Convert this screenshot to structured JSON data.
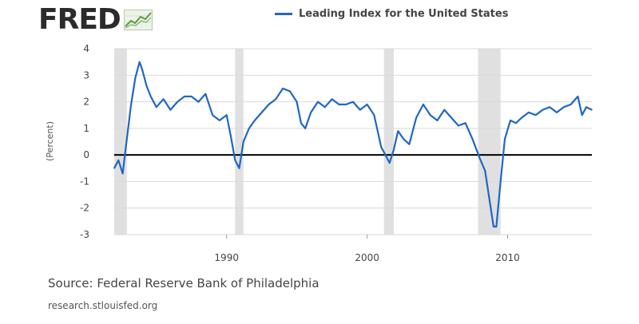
{
  "brand": {
    "name": "FRED",
    "logo_icon": "trend-chart-icon"
  },
  "legend": {
    "label": "Leading Index for the United States",
    "color": "#1f67c4"
  },
  "footer": {
    "source": "Source: Federal Reserve Bank of Philadelphia",
    "url": "research.stlouisfed.org"
  },
  "colors": {
    "series": "#1f67c4",
    "recession": "#e0e0e0",
    "zero_line": "#000000",
    "grid": "#d9d9d9"
  },
  "chart_data": {
    "type": "line",
    "title": "",
    "xlabel": "",
    "ylabel": "(Percent)",
    "xlim": [
      1982,
      2016
    ],
    "ylim": [
      -3,
      4
    ],
    "x_ticks": [
      1990,
      2000,
      2010
    ],
    "y_ticks": [
      4,
      3,
      2,
      1,
      0,
      -1,
      -2,
      -3
    ],
    "grid": true,
    "zero_line": true,
    "legend_position": "top-right",
    "recessions": [
      [
        1982.0,
        1982.9
      ],
      [
        1990.6,
        1991.2
      ],
      [
        2001.2,
        2001.9
      ],
      [
        2007.9,
        2009.5
      ]
    ],
    "series": [
      {
        "name": "Leading Index for the United States",
        "x": [
          1982.0,
          1982.3,
          1982.6,
          1982.9,
          1983.2,
          1983.5,
          1983.8,
          1984.0,
          1984.3,
          1984.6,
          1985.0,
          1985.5,
          1986.0,
          1986.5,
          1987.0,
          1987.5,
          1988.0,
          1988.5,
          1989.0,
          1989.5,
          1990.0,
          1990.3,
          1990.6,
          1990.9,
          1991.2,
          1991.6,
          1992.0,
          1992.5,
          1993.0,
          1993.5,
          1994.0,
          1994.5,
          1995.0,
          1995.3,
          1995.6,
          1996.0,
          1996.5,
          1997.0,
          1997.5,
          1998.0,
          1998.5,
          1999.0,
          1999.5,
          2000.0,
          2000.5,
          2001.0,
          2001.3,
          2001.6,
          2001.9,
          2002.2,
          2002.6,
          2003.0,
          2003.5,
          2004.0,
          2004.5,
          2005.0,
          2005.5,
          2006.0,
          2006.5,
          2007.0,
          2007.5,
          2008.0,
          2008.4,
          2008.8,
          2009.0,
          2009.2,
          2009.5,
          2009.8,
          2010.2,
          2010.6,
          2011.0,
          2011.5,
          2012.0,
          2012.5,
          2013.0,
          2013.5,
          2014.0,
          2014.5,
          2015.0,
          2015.3,
          2015.6,
          2016.0
        ],
        "values": [
          -0.5,
          -0.2,
          -0.7,
          0.6,
          1.9,
          2.9,
          3.5,
          3.2,
          2.6,
          2.2,
          1.8,
          2.1,
          1.7,
          2.0,
          2.2,
          2.2,
          2.0,
          2.3,
          1.5,
          1.3,
          1.5,
          0.7,
          -0.2,
          -0.5,
          0.5,
          1.0,
          1.3,
          1.6,
          1.9,
          2.1,
          2.5,
          2.4,
          2.0,
          1.2,
          1.0,
          1.6,
          2.0,
          1.8,
          2.1,
          1.9,
          1.9,
          2.0,
          1.7,
          1.9,
          1.5,
          0.3,
          0.0,
          -0.3,
          0.2,
          0.9,
          0.6,
          0.4,
          1.4,
          1.9,
          1.5,
          1.3,
          1.7,
          1.4,
          1.1,
          1.2,
          0.6,
          -0.1,
          -0.6,
          -2.0,
          -2.7,
          -2.7,
          -1.0,
          0.6,
          1.3,
          1.2,
          1.4,
          1.6,
          1.5,
          1.7,
          1.8,
          1.6,
          1.8,
          1.9,
          2.2,
          1.5,
          1.8,
          1.7
        ]
      }
    ]
  }
}
